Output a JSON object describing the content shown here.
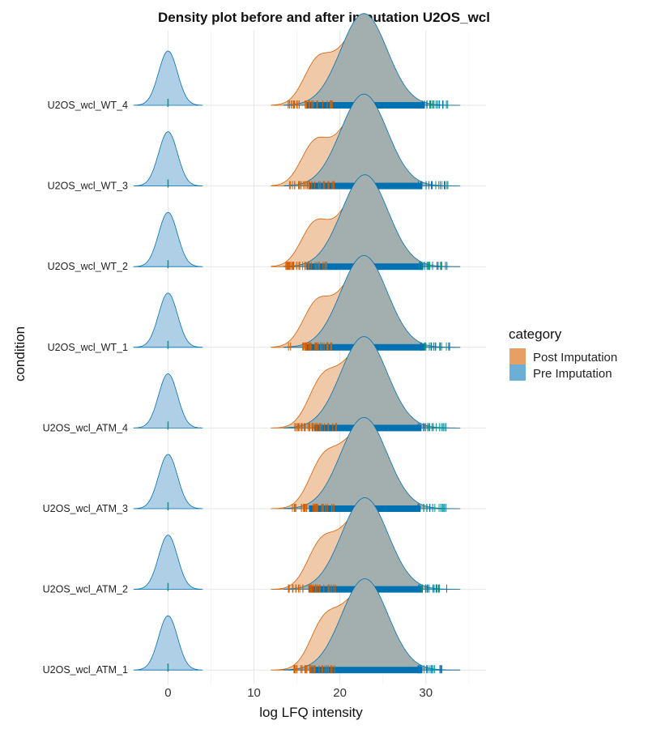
{
  "chart_data": {
    "type": "density_ridgeline",
    "title": "Density plot before and after imputation U2OS_wcl",
    "xlabel": "log LFQ intensity",
    "ylabel": "condition",
    "xlim": [
      -4,
      37
    ],
    "x_ticks": [
      0,
      10,
      20,
      30
    ],
    "grid": true,
    "legend": {
      "title": "category",
      "position": "right",
      "entries": [
        {
          "name": "Post Imputation",
          "color": "#e69f65"
        },
        {
          "name": "Pre Imputation",
          "color": "#6baed6"
        }
      ]
    },
    "colors": {
      "post_fill": "#f0c9a8",
      "post_line": "#d55e00",
      "pre_fill": "#aecfe6",
      "pre_line": "#0072b2",
      "overlap_fill": "#a3aeae",
      "rug_post": "#d55e00",
      "rug_pre": "#0072b2",
      "rug_outlier": "#009e73"
    },
    "categories": [
      "U2OS_wcl_ATM_1",
      "U2OS_wcl_ATM_2",
      "U2OS_wcl_ATM_3",
      "U2OS_wcl_ATM_4",
      "U2OS_wcl_WT_1",
      "U2OS_wcl_WT_2",
      "U2OS_wcl_WT_3",
      "U2OS_wcl_WT_4"
    ],
    "series": [
      {
        "name": "U2OS_wcl_ATM_1",
        "imputed_peak": 18.0,
        "main_peak": 22.9,
        "peak_height": 1.0,
        "imputed_density": {
          "mean": 0.0,
          "sd": 1.1
        },
        "rug_range": [
          14.2,
          32.6
        ]
      },
      {
        "name": "U2OS_wcl_ATM_2",
        "imputed_peak": 17.7,
        "main_peak": 22.9,
        "peak_height": 1.0,
        "imputed_density": {
          "mean": 0.0,
          "sd": 1.1
        },
        "rug_range": [
          14.0,
          32.6
        ]
      },
      {
        "name": "U2OS_wcl_ATM_3",
        "imputed_peak": 17.9,
        "main_peak": 22.8,
        "peak_height": 1.0,
        "imputed_density": {
          "mean": 0.0,
          "sd": 1.1
        },
        "rug_range": [
          14.0,
          32.4
        ]
      },
      {
        "name": "U2OS_wcl_ATM_4",
        "imputed_peak": 17.8,
        "main_peak": 22.8,
        "peak_height": 1.0,
        "imputed_density": {
          "mean": 0.0,
          "sd": 1.1
        },
        "rug_range": [
          14.6,
          32.5
        ]
      },
      {
        "name": "U2OS_wcl_WT_1",
        "imputed_peak": 17.2,
        "main_peak": 22.8,
        "peak_height": 1.0,
        "imputed_density": {
          "mean": 0.0,
          "sd": 1.1
        },
        "rug_range": [
          13.6,
          32.8
        ]
      },
      {
        "name": "U2OS_wcl_WT_2",
        "imputed_peak": 17.0,
        "main_peak": 22.9,
        "peak_height": 1.0,
        "imputed_density": {
          "mean": 0.0,
          "sd": 1.1
        },
        "rug_range": [
          13.7,
          32.7
        ]
      },
      {
        "name": "U2OS_wcl_WT_3",
        "imputed_peak": 17.0,
        "main_peak": 22.8,
        "peak_height": 1.0,
        "imputed_density": {
          "mean": 0.0,
          "sd": 1.1
        },
        "rug_range": [
          14.0,
          32.6
        ]
      },
      {
        "name": "U2OS_wcl_WT_4",
        "imputed_peak": 17.3,
        "main_peak": 22.8,
        "peak_height": 1.0,
        "imputed_density": {
          "mean": 0.0,
          "sd": 1.1
        },
        "rug_range": [
          13.7,
          32.8
        ]
      }
    ]
  }
}
